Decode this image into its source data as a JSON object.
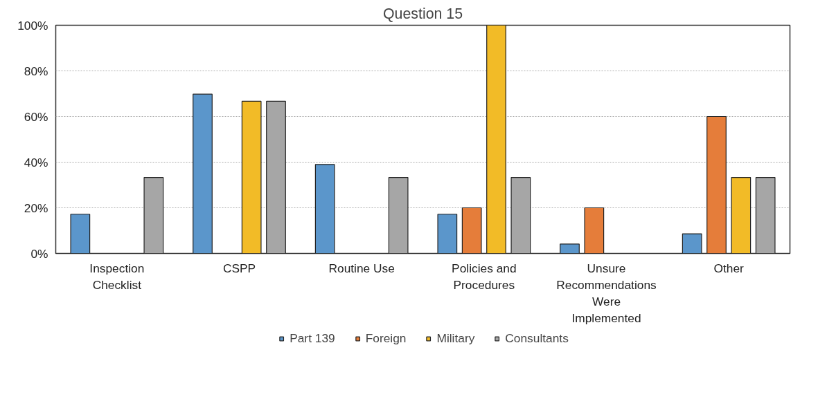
{
  "chart_data": {
    "type": "bar",
    "title": "Question 15",
    "categories": [
      "Inspection Checklist",
      "CSPP",
      "Routine Use",
      "Policies and Procedures",
      "Unsure Recommendations Were Implemented",
      "Other"
    ],
    "series": [
      {
        "name": "Part 139",
        "color": "#5b96cb",
        "values": [
          17.2,
          69.8,
          39.0,
          17.2,
          4.1,
          8.6
        ]
      },
      {
        "name": "Foreign",
        "color": "#e57d3a",
        "values": [
          0,
          0,
          0,
          20,
          20,
          60
        ]
      },
      {
        "name": "Military",
        "color": "#f2bb27",
        "values": [
          0,
          66.7,
          0,
          100,
          0,
          33.3
        ]
      },
      {
        "name": "Consultants",
        "color": "#a6a6a6",
        "values": [
          33.3,
          66.7,
          33.3,
          33.3,
          0,
          33.3
        ]
      }
    ],
    "ylim": [
      0,
      100
    ],
    "yticks": [
      {
        "value": 0,
        "label": "0%"
      },
      {
        "value": 20,
        "label": "20%"
      },
      {
        "value": 40,
        "label": "40%"
      },
      {
        "value": 60,
        "label": "60%"
      },
      {
        "value": 80,
        "label": "80%"
      },
      {
        "value": 100,
        "label": "100%"
      }
    ],
    "grid": "y",
    "legend": "bottom"
  }
}
